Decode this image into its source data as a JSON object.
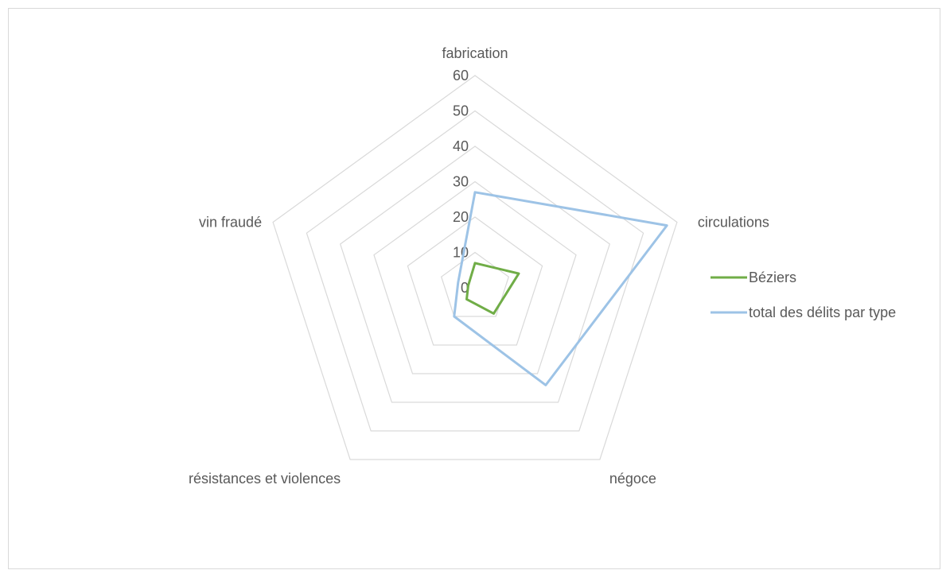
{
  "chart_data": {
    "type": "radar",
    "title": "",
    "categories": [
      "fabrication",
      "circulations",
      "négoce",
      "résistances et violences",
      "vin fraudé"
    ],
    "r_ticks": [
      0,
      10,
      20,
      30,
      40,
      50,
      60
    ],
    "r_range": [
      0,
      60
    ],
    "legend_position": "right",
    "series": [
      {
        "name": "Béziers",
        "color": "#70ad47",
        "values": [
          7,
          13,
          9,
          4,
          2
        ]
      },
      {
        "name": "total des délits par type",
        "color": "#9dc3e6",
        "values": [
          27,
          57,
          34,
          10,
          5
        ]
      }
    ],
    "grid": true,
    "grid_color": "#d9d9d9"
  }
}
